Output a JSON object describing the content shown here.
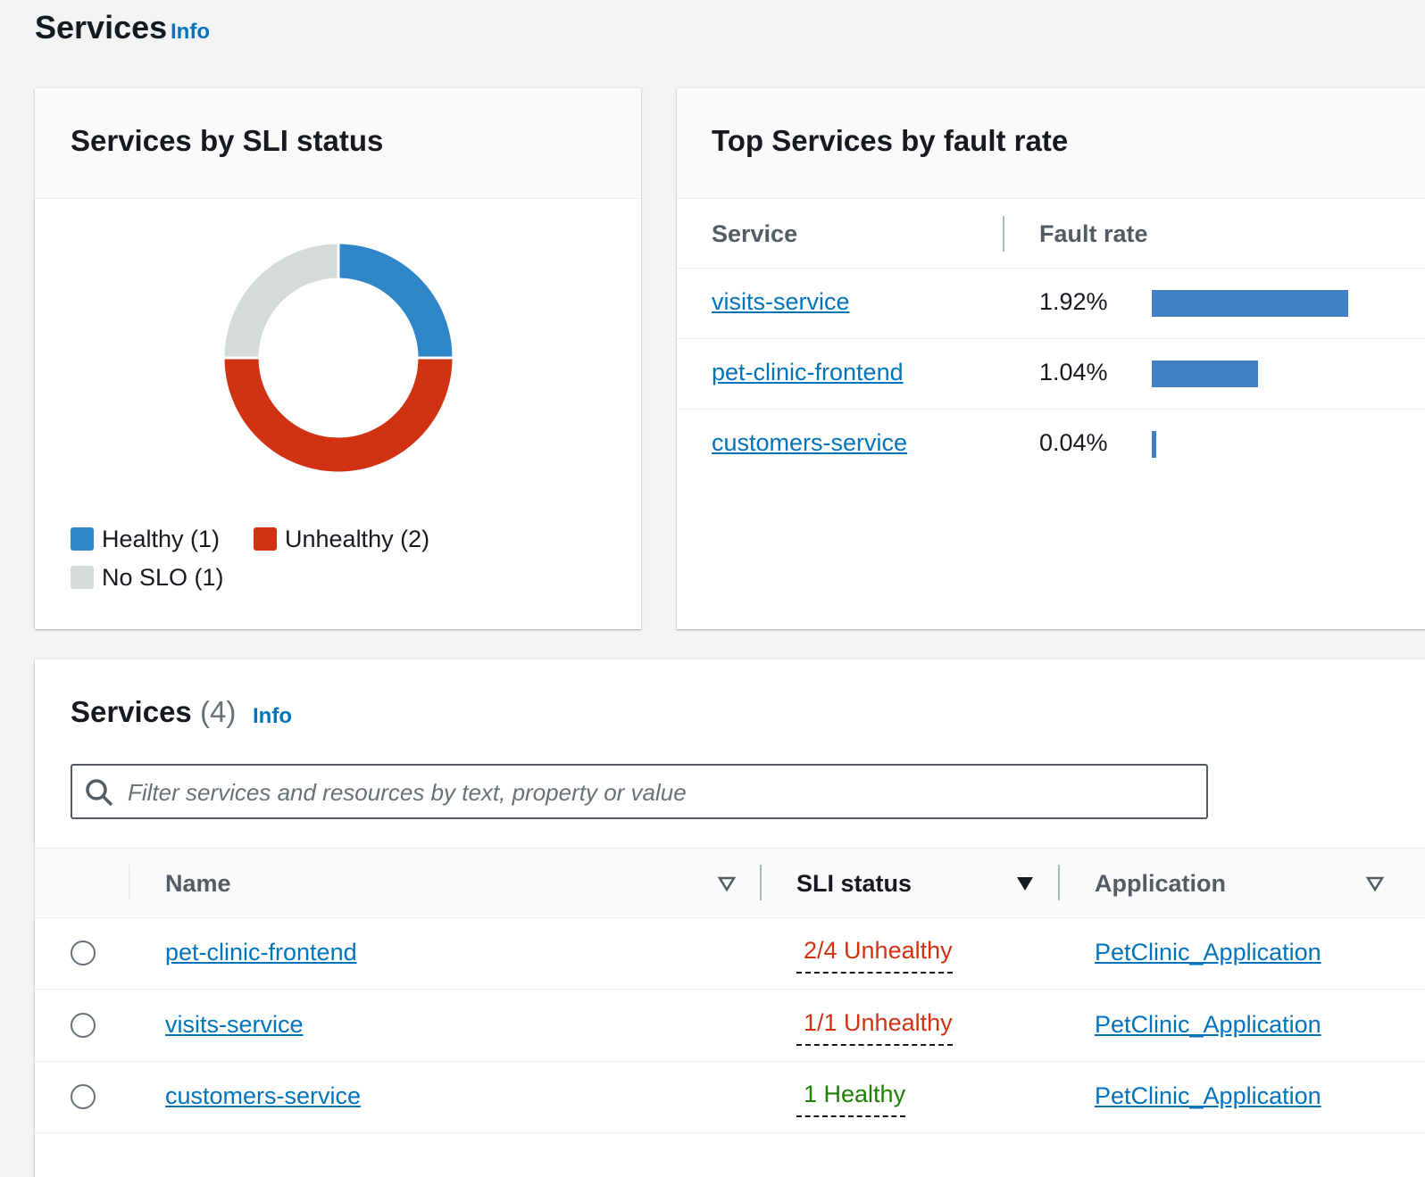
{
  "header": {
    "title": "Services",
    "info": "Info"
  },
  "sli_panel": {
    "title": "Services by SLI status",
    "segments": [
      {
        "label": "Healthy (1)",
        "value": 1,
        "color": "#2e86c9"
      },
      {
        "label": "Unhealthy (2)",
        "value": 2,
        "color": "#d13212"
      },
      {
        "label": "No SLO (1)",
        "value": 1,
        "color": "#d5dbdb"
      }
    ]
  },
  "fault_panel": {
    "title": "Top Services by fault rate",
    "columns": [
      "Service",
      "Fault rate"
    ],
    "bar_color": "#3f7fc4",
    "rows": [
      {
        "service": "visits-service",
        "fault_rate": 1.92,
        "fault_rate_label": "1.92%"
      },
      {
        "service": "pet-clinic-frontend",
        "fault_rate": 1.04,
        "fault_rate_label": "1.04%"
      },
      {
        "service": "customers-service",
        "fault_rate": 0.04,
        "fault_rate_label": "0.04%"
      }
    ]
  },
  "services_table": {
    "title": "Services",
    "count": "(4)",
    "info": "Info",
    "filter_placeholder": "Filter services and resources by text, property or value",
    "columns": [
      "Name",
      "SLI status",
      "Application"
    ],
    "rows": [
      {
        "name": "pet-clinic-frontend",
        "sli_status": "2/4 Unhealthy",
        "status_color": "#d13212",
        "icon": "error",
        "application": "PetClinic_Application"
      },
      {
        "name": "visits-service",
        "sli_status": "1/1 Unhealthy",
        "status_color": "#d13212",
        "icon": "error",
        "application": "PetClinic_Application"
      },
      {
        "name": "customers-service",
        "sli_status": "1 Healthy",
        "status_color": "#1d8102",
        "icon": "success",
        "application": "PetClinic_Application"
      }
    ]
  }
}
